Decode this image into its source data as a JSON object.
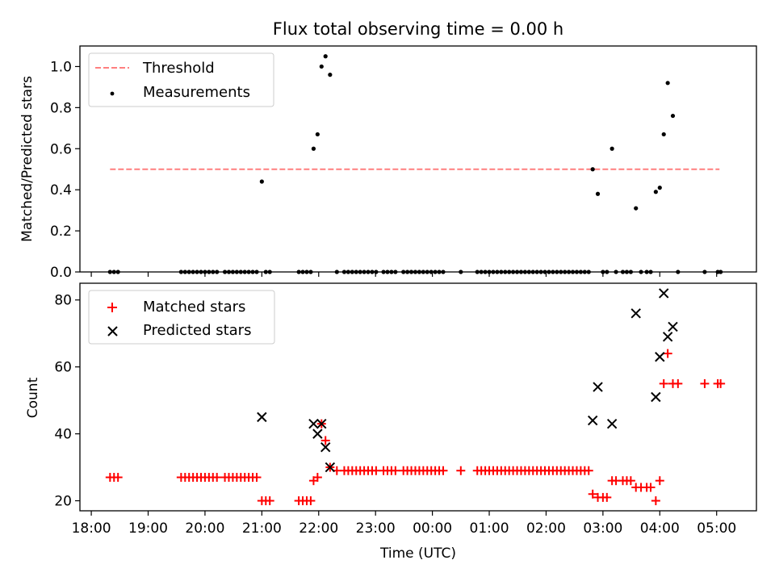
{
  "chart_data": [
    {
      "type": "scatter",
      "title": "Flux total observing time = 0.00 h",
      "xlabel": "",
      "ylabel": "Matched/Predicted stars",
      "xlim": [
        17.8,
        29.7
      ],
      "ylim": [
        0.0,
        1.1
      ],
      "yticks": [
        "0.0",
        "0.2",
        "0.4",
        "0.6",
        "0.8",
        "1.0"
      ],
      "legend": "top-left",
      "threshold": {
        "name": "Threshold",
        "value": 0.5,
        "x": [
          18.33,
          29.05
        ],
        "color": "#ff7f7f"
      },
      "series": [
        {
          "name": "Measurements",
          "color": "#000000",
          "points": [
            [
              18.33,
              0
            ],
            [
              18.4,
              0
            ],
            [
              18.47,
              0
            ],
            [
              19.58,
              0
            ],
            [
              19.65,
              0
            ],
            [
              19.72,
              0
            ],
            [
              19.79,
              0
            ],
            [
              19.86,
              0
            ],
            [
              19.93,
              0
            ],
            [
              20.0,
              0
            ],
            [
              20.07,
              0
            ],
            [
              20.14,
              0
            ],
            [
              20.21,
              0
            ],
            [
              20.35,
              0
            ],
            [
              20.42,
              0
            ],
            [
              20.49,
              0
            ],
            [
              20.56,
              0
            ],
            [
              20.63,
              0
            ],
            [
              20.7,
              0
            ],
            [
              20.77,
              0
            ],
            [
              20.84,
              0
            ],
            [
              20.91,
              0
            ],
            [
              21.0,
              0.44
            ],
            [
              21.07,
              0
            ],
            [
              21.14,
              0
            ],
            [
              21.65,
              0
            ],
            [
              21.72,
              0
            ],
            [
              21.79,
              0
            ],
            [
              21.86,
              0
            ],
            [
              21.91,
              0.6
            ],
            [
              21.98,
              0.67
            ],
            [
              22.05,
              1.0
            ],
            [
              22.12,
              1.05
            ],
            [
              22.2,
              0.96
            ],
            [
              22.32,
              0
            ],
            [
              22.45,
              0
            ],
            [
              22.52,
              0
            ],
            [
              22.59,
              0
            ],
            [
              22.66,
              0
            ],
            [
              22.73,
              0
            ],
            [
              22.8,
              0
            ],
            [
              22.87,
              0
            ],
            [
              22.94,
              0
            ],
            [
              23.01,
              0
            ],
            [
              23.14,
              0
            ],
            [
              23.21,
              0
            ],
            [
              23.28,
              0
            ],
            [
              23.35,
              0
            ],
            [
              23.49,
              0
            ],
            [
              23.56,
              0
            ],
            [
              23.63,
              0
            ],
            [
              23.7,
              0
            ],
            [
              23.77,
              0
            ],
            [
              23.84,
              0
            ],
            [
              23.91,
              0
            ],
            [
              23.98,
              0
            ],
            [
              24.05,
              0
            ],
            [
              24.12,
              0
            ],
            [
              24.19,
              0
            ],
            [
              24.5,
              0
            ],
            [
              24.79,
              0
            ],
            [
              24.86,
              0
            ],
            [
              24.93,
              0
            ],
            [
              25.0,
              0
            ],
            [
              25.07,
              0
            ],
            [
              25.14,
              0
            ],
            [
              25.21,
              0
            ],
            [
              25.28,
              0
            ],
            [
              25.35,
              0
            ],
            [
              25.42,
              0
            ],
            [
              25.49,
              0
            ],
            [
              25.56,
              0
            ],
            [
              25.63,
              0
            ],
            [
              25.7,
              0
            ],
            [
              25.77,
              0
            ],
            [
              25.84,
              0
            ],
            [
              25.91,
              0
            ],
            [
              25.98,
              0
            ],
            [
              26.05,
              0
            ],
            [
              26.12,
              0
            ],
            [
              26.19,
              0
            ],
            [
              26.26,
              0
            ],
            [
              26.33,
              0
            ],
            [
              26.4,
              0
            ],
            [
              26.47,
              0
            ],
            [
              26.54,
              0
            ],
            [
              26.61,
              0
            ],
            [
              26.68,
              0
            ],
            [
              26.75,
              0
            ],
            [
              26.82,
              0.5
            ],
            [
              26.91,
              0.38
            ],
            [
              27.0,
              0
            ],
            [
              27.07,
              0
            ],
            [
              27.16,
              0.6
            ],
            [
              27.23,
              0
            ],
            [
              27.35,
              0
            ],
            [
              27.42,
              0
            ],
            [
              27.49,
              0
            ],
            [
              27.58,
              0.31
            ],
            [
              27.67,
              0
            ],
            [
              27.77,
              0
            ],
            [
              27.84,
              0
            ],
            [
              27.93,
              0.39
            ],
            [
              28.0,
              0.41
            ],
            [
              28.07,
              0.67
            ],
            [
              28.14,
              0.92
            ],
            [
              28.23,
              0.76
            ],
            [
              28.32,
              0
            ],
            [
              28.79,
              0
            ],
            [
              29.02,
              0
            ],
            [
              29.07,
              0
            ]
          ]
        }
      ]
    },
    {
      "type": "scatter",
      "title": "",
      "xlabel": "Time (UTC)",
      "ylabel": "Count",
      "xlim": [
        17.8,
        29.7
      ],
      "ylim": [
        17,
        85
      ],
      "yticks": [
        "20",
        "40",
        "60",
        "80"
      ],
      "xtick_values": [
        18,
        19,
        20,
        21,
        22,
        23,
        24,
        25,
        26,
        27,
        28,
        29
      ],
      "xticks": [
        "18:00",
        "19:00",
        "20:00",
        "21:00",
        "22:00",
        "23:00",
        "00:00",
        "01:00",
        "02:00",
        "03:00",
        "04:00",
        "05:00"
      ],
      "legend": "top-left",
      "series": [
        {
          "name": "Matched stars",
          "color": "#ff0000",
          "marker": "plus",
          "points": [
            [
              18.33,
              27
            ],
            [
              18.4,
              27
            ],
            [
              18.47,
              27
            ],
            [
              19.58,
              27
            ],
            [
              19.65,
              27
            ],
            [
              19.72,
              27
            ],
            [
              19.79,
              27
            ],
            [
              19.86,
              27
            ],
            [
              19.93,
              27
            ],
            [
              20.0,
              27
            ],
            [
              20.07,
              27
            ],
            [
              20.14,
              27
            ],
            [
              20.21,
              27
            ],
            [
              20.35,
              27
            ],
            [
              20.42,
              27
            ],
            [
              20.49,
              27
            ],
            [
              20.56,
              27
            ],
            [
              20.63,
              27
            ],
            [
              20.7,
              27
            ],
            [
              20.77,
              27
            ],
            [
              20.84,
              27
            ],
            [
              20.91,
              27
            ],
            [
              21.0,
              20
            ],
            [
              21.07,
              20
            ],
            [
              21.14,
              20
            ],
            [
              21.65,
              20
            ],
            [
              21.72,
              20
            ],
            [
              21.79,
              20
            ],
            [
              21.86,
              20
            ],
            [
              21.91,
              26
            ],
            [
              21.98,
              27
            ],
            [
              22.05,
              43
            ],
            [
              22.12,
              38
            ],
            [
              22.2,
              30
            ],
            [
              22.32,
              29
            ],
            [
              22.45,
              29
            ],
            [
              22.52,
              29
            ],
            [
              22.59,
              29
            ],
            [
              22.66,
              29
            ],
            [
              22.73,
              29
            ],
            [
              22.8,
              29
            ],
            [
              22.87,
              29
            ],
            [
              22.94,
              29
            ],
            [
              23.01,
              29
            ],
            [
              23.14,
              29
            ],
            [
              23.21,
              29
            ],
            [
              23.28,
              29
            ],
            [
              23.35,
              29
            ],
            [
              23.49,
              29
            ],
            [
              23.56,
              29
            ],
            [
              23.63,
              29
            ],
            [
              23.7,
              29
            ],
            [
              23.77,
              29
            ],
            [
              23.84,
              29
            ],
            [
              23.91,
              29
            ],
            [
              23.98,
              29
            ],
            [
              24.05,
              29
            ],
            [
              24.12,
              29
            ],
            [
              24.19,
              29
            ],
            [
              24.5,
              29
            ],
            [
              24.79,
              29
            ],
            [
              24.86,
              29
            ],
            [
              24.93,
              29
            ],
            [
              25.0,
              29
            ],
            [
              25.07,
              29
            ],
            [
              25.14,
              29
            ],
            [
              25.21,
              29
            ],
            [
              25.28,
              29
            ],
            [
              25.35,
              29
            ],
            [
              25.42,
              29
            ],
            [
              25.49,
              29
            ],
            [
              25.56,
              29
            ],
            [
              25.63,
              29
            ],
            [
              25.7,
              29
            ],
            [
              25.77,
              29
            ],
            [
              25.84,
              29
            ],
            [
              25.91,
              29
            ],
            [
              25.98,
              29
            ],
            [
              26.05,
              29
            ],
            [
              26.12,
              29
            ],
            [
              26.19,
              29
            ],
            [
              26.26,
              29
            ],
            [
              26.33,
              29
            ],
            [
              26.4,
              29
            ],
            [
              26.47,
              29
            ],
            [
              26.54,
              29
            ],
            [
              26.61,
              29
            ],
            [
              26.68,
              29
            ],
            [
              26.75,
              29
            ],
            [
              26.82,
              22
            ],
            [
              26.91,
              21
            ],
            [
              27.0,
              21
            ],
            [
              27.07,
              21
            ],
            [
              27.16,
              26
            ],
            [
              27.23,
              26
            ],
            [
              27.35,
              26
            ],
            [
              27.42,
              26
            ],
            [
              27.49,
              26
            ],
            [
              27.58,
              24
            ],
            [
              27.67,
              24
            ],
            [
              27.77,
              24
            ],
            [
              27.84,
              24
            ],
            [
              27.93,
              20
            ],
            [
              28.0,
              26
            ],
            [
              28.07,
              55
            ],
            [
              28.14,
              64
            ],
            [
              28.23,
              55
            ],
            [
              28.32,
              55
            ],
            [
              28.79,
              55
            ],
            [
              29.02,
              55
            ],
            [
              29.07,
              55
            ]
          ]
        },
        {
          "name": "Predicted stars",
          "color": "#000000",
          "marker": "x",
          "points": [
            [
              21.0,
              45
            ],
            [
              21.91,
              43
            ],
            [
              21.98,
              40
            ],
            [
              22.05,
              43
            ],
            [
              22.12,
              36
            ],
            [
              22.2,
              30
            ],
            [
              26.82,
              44
            ],
            [
              26.91,
              54
            ],
            [
              27.16,
              43
            ],
            [
              27.58,
              76
            ],
            [
              27.93,
              51
            ],
            [
              28.0,
              63
            ],
            [
              28.07,
              82
            ],
            [
              28.14,
              69
            ],
            [
              28.23,
              72
            ]
          ]
        }
      ]
    }
  ]
}
